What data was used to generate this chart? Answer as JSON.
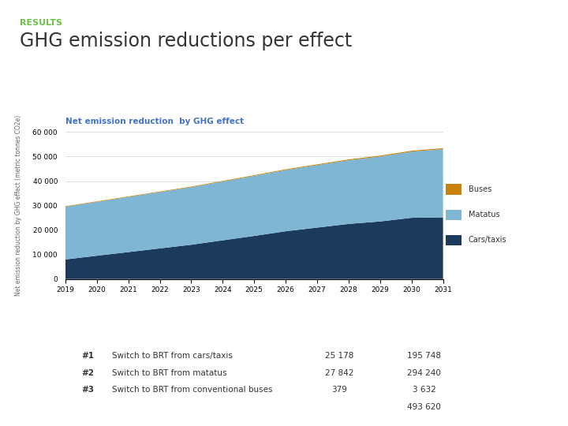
{
  "title": "GHG emission reductions per effect",
  "subtitle": "RESULTS",
  "chart_subtitle": "Net emission reduction  by GHG effect",
  "ylabel": "Net emission reduction by GHG effect (metric tonnes CO2e)",
  "years": [
    2019,
    2020,
    2021,
    2022,
    2023,
    2024,
    2025,
    2026,
    2027,
    2028,
    2029,
    2030,
    2031
  ],
  "cars_taxis": [
    8000,
    9500,
    11000,
    12500,
    14000,
    15800,
    17600,
    19500,
    21000,
    22500,
    23500,
    25000,
    25178
  ],
  "matatus": [
    21500,
    22000,
    22500,
    23000,
    23500,
    24000,
    24500,
    25000,
    25500,
    26000,
    26500,
    27000,
    27842
  ],
  "buses": [
    200,
    210,
    220,
    230,
    240,
    260,
    280,
    300,
    320,
    340,
    360,
    375,
    379
  ],
  "color_cars": "#1b3a5c",
  "color_matatus": "#7eb6d4",
  "color_buses": "#c8820a",
  "ylim": [
    0,
    60000
  ],
  "yticks": [
    0,
    10000,
    20000,
    30000,
    40000,
    50000,
    60000
  ],
  "ytick_labels": [
    "0",
    "10 000",
    "20 000",
    "30 000",
    "40 000",
    "50 000",
    "60 000"
  ],
  "bg_color": "#ffffff",
  "subtitle_color": "#6dbe47",
  "chart_subtitle_color": "#4472c4",
  "table_header_color": "#4472c4",
  "table_subheader_color": "#6080c0",
  "table_row_alt": "#dce6f1",
  "table_row_white": "#eef2f8",
  "table_total_bg": "#dce6f1",
  "table_data": [
    [
      "#1",
      "Switch to BRT from cars/taxis",
      "25 178",
      "195 748"
    ],
    [
      "#2",
      "Switch to BRT from matatus",
      "27 842",
      "294 240"
    ],
    [
      "#3",
      "Switch to BRT from conventional buses",
      "379",
      "3 632"
    ]
  ],
  "table_total": "493 620",
  "c40_green": "#6dbe47"
}
